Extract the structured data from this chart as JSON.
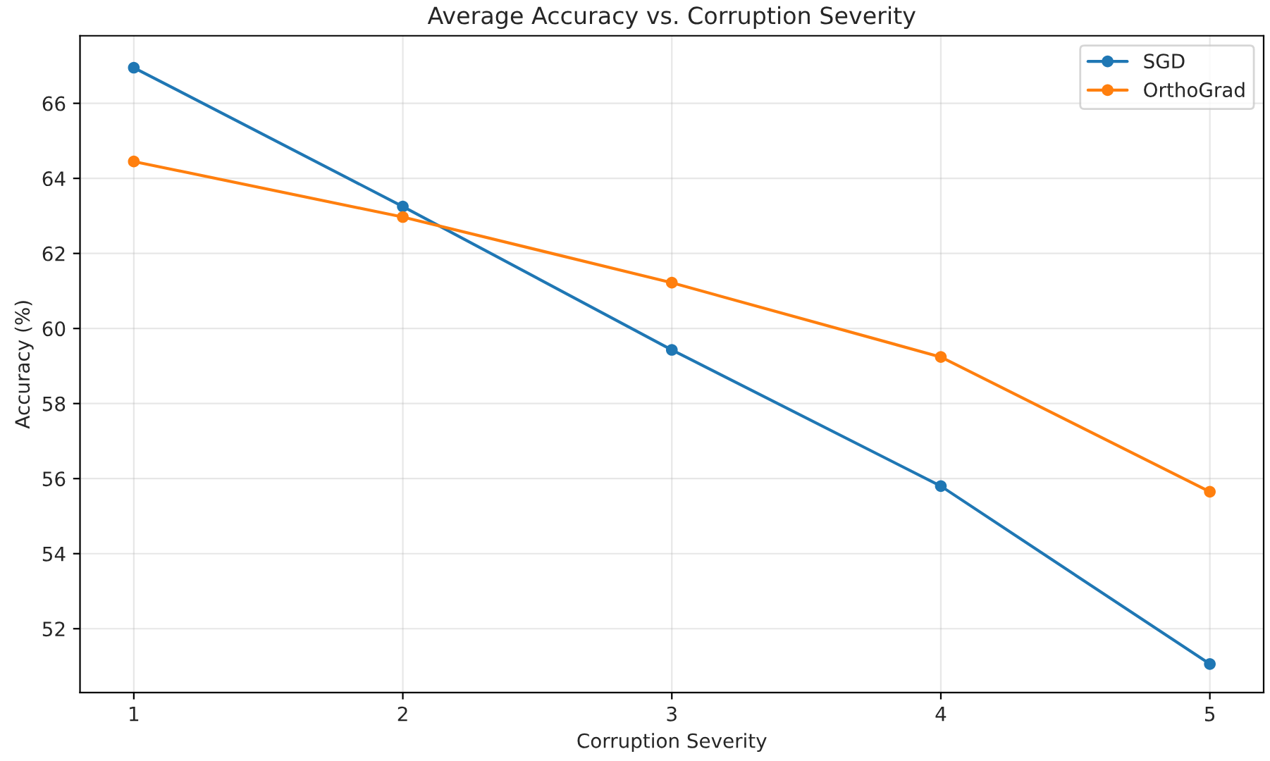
{
  "chart_data": {
    "type": "line",
    "title": "Average Accuracy vs. Corruption Severity",
    "xlabel": "Corruption Severity",
    "ylabel": "Accuracy (%)",
    "x": [
      1,
      2,
      3,
      4,
      5
    ],
    "series": [
      {
        "name": "SGD",
        "color": "#1f77b4",
        "values": [
          66.95,
          63.25,
          59.43,
          55.8,
          51.06
        ]
      },
      {
        "name": "OrthoGrad",
        "color": "#ff7f0e",
        "values": [
          64.45,
          62.97,
          61.22,
          59.24,
          55.65
        ]
      }
    ],
    "xlim": [
      0.8,
      5.2
    ],
    "ylim": [
      50.3,
      67.8
    ],
    "xticks": [
      1,
      2,
      3,
      4,
      5
    ],
    "yticks": [
      52,
      54,
      56,
      58,
      60,
      62,
      64,
      66
    ],
    "grid": true,
    "legend": "top right",
    "marker": "circle",
    "line_style": "solid"
  }
}
